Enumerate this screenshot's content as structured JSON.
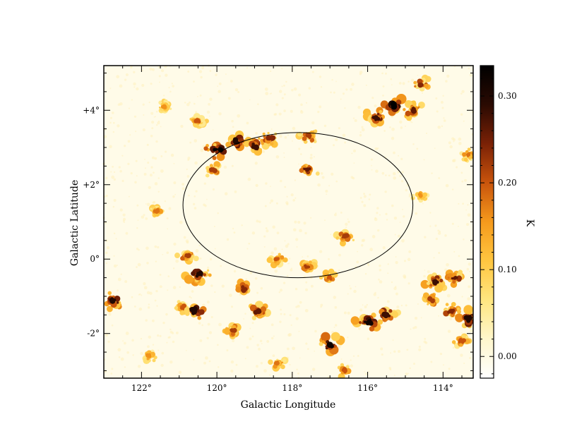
{
  "chart_data": {
    "type": "heatmap",
    "title": "",
    "xlabel": "Galactic Longitude",
    "ylabel": "Galactic Latitude",
    "xlim": [
      123.0,
      113.2
    ],
    "ylim": [
      -3.2,
      5.2
    ],
    "xticks": [
      {
        "value": 122,
        "label": "122°"
      },
      {
        "value": 120,
        "label": "120°"
      },
      {
        "value": 118,
        "label": "118°"
      },
      {
        "value": 116,
        "label": "116°"
      },
      {
        "value": 114,
        "label": "114°"
      }
    ],
    "yticks": [
      {
        "value": 4,
        "label": "+4°"
      },
      {
        "value": 2,
        "label": "+2°"
      },
      {
        "value": 0,
        "label": "0°"
      },
      {
        "value": -2,
        "label": "-2°"
      }
    ],
    "colorbar": {
      "label": "K",
      "range": [
        -0.025,
        0.335
      ],
      "ticks": [
        {
          "value": 0.3,
          "label": "0.30"
        },
        {
          "value": 0.2,
          "label": "0.20"
        },
        {
          "value": 0.1,
          "label": "0.10"
        },
        {
          "value": 0.0,
          "label": "0.00"
        }
      ],
      "colormap": [
        "#ffffff",
        "#fff6cc",
        "#ffe680",
        "#ffc640",
        "#f59a1c",
        "#c9540c",
        "#7a2106",
        "#2a0a02",
        "#000000"
      ]
    },
    "ellipse": {
      "center_l": 117.85,
      "center_b": 1.45,
      "semi_l": 3.05,
      "semi_b": 1.95
    },
    "emission_clumps": [
      {
        "l": 120.0,
        "b": 2.95,
        "value": 0.33
      },
      {
        "l": 119.5,
        "b": 3.15,
        "value": 0.3
      },
      {
        "l": 119.0,
        "b": 3.05,
        "value": 0.28
      },
      {
        "l": 118.6,
        "b": 3.25,
        "value": 0.24
      },
      {
        "l": 117.55,
        "b": 3.3,
        "value": 0.22
      },
      {
        "l": 115.3,
        "b": 4.1,
        "value": 0.34
      },
      {
        "l": 115.8,
        "b": 3.8,
        "value": 0.28
      },
      {
        "l": 114.8,
        "b": 4.0,
        "value": 0.26
      },
      {
        "l": 114.6,
        "b": 4.7,
        "value": 0.24
      },
      {
        "l": 121.4,
        "b": 4.1,
        "value": 0.16
      },
      {
        "l": 120.5,
        "b": 3.7,
        "value": 0.2
      },
      {
        "l": 120.1,
        "b": 2.4,
        "value": 0.22
      },
      {
        "l": 121.6,
        "b": 1.3,
        "value": 0.18
      },
      {
        "l": 117.6,
        "b": 2.4,
        "value": 0.26
      },
      {
        "l": 116.6,
        "b": 0.6,
        "value": 0.22
      },
      {
        "l": 118.4,
        "b": 0.0,
        "value": 0.2
      },
      {
        "l": 117.6,
        "b": -0.2,
        "value": 0.22
      },
      {
        "l": 120.8,
        "b": 0.1,
        "value": 0.22
      },
      {
        "l": 120.5,
        "b": -0.4,
        "value": 0.3
      },
      {
        "l": 119.3,
        "b": -0.8,
        "value": 0.24
      },
      {
        "l": 122.8,
        "b": -1.1,
        "value": 0.3
      },
      {
        "l": 120.9,
        "b": -1.3,
        "value": 0.2
      },
      {
        "l": 120.6,
        "b": -1.4,
        "value": 0.3
      },
      {
        "l": 119.6,
        "b": -1.9,
        "value": 0.22
      },
      {
        "l": 118.9,
        "b": -1.4,
        "value": 0.26
      },
      {
        "l": 117.0,
        "b": -2.3,
        "value": 0.32
      },
      {
        "l": 116.0,
        "b": -1.7,
        "value": 0.32
      },
      {
        "l": 115.5,
        "b": -1.5,
        "value": 0.28
      },
      {
        "l": 114.2,
        "b": -0.6,
        "value": 0.28
      },
      {
        "l": 113.7,
        "b": -0.5,
        "value": 0.26
      },
      {
        "l": 114.3,
        "b": -1.1,
        "value": 0.22
      },
      {
        "l": 113.8,
        "b": -1.4,
        "value": 0.24
      },
      {
        "l": 113.3,
        "b": -1.6,
        "value": 0.3
      },
      {
        "l": 113.5,
        "b": -2.2,
        "value": 0.2
      },
      {
        "l": 116.6,
        "b": -3.0,
        "value": 0.2
      },
      {
        "l": 118.4,
        "b": -2.8,
        "value": 0.18
      },
      {
        "l": 121.8,
        "b": -2.6,
        "value": 0.16
      },
      {
        "l": 113.3,
        "b": 2.8,
        "value": 0.18
      },
      {
        "l": 114.6,
        "b": 1.7,
        "value": 0.16
      },
      {
        "l": 117.0,
        "b": -0.5,
        "value": 0.2
      }
    ]
  }
}
